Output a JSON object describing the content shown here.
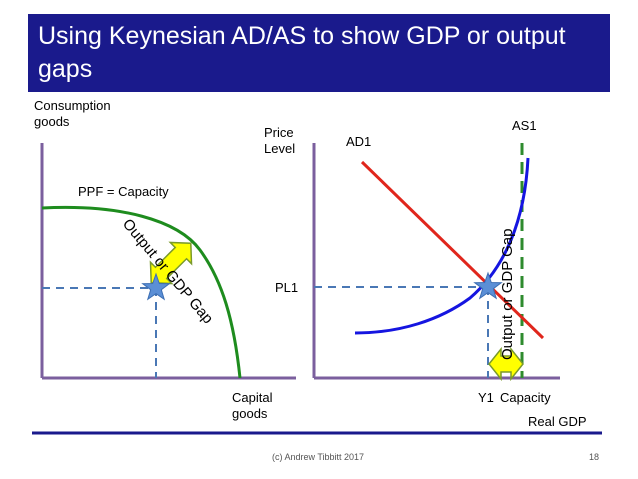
{
  "slide": {
    "title": "Using Keynesian AD/AS to show GDP or output gaps",
    "footer": "(c) Andrew Tibbitt 2017",
    "page_number": "18"
  },
  "ppf_diagram": {
    "y_axis_label_line1": "Consumption",
    "y_axis_label_line2": "goods",
    "x_axis_label_line1": "Capital",
    "x_axis_label_line2": "goods",
    "curve_label": "PPF = Capacity",
    "gap_label": "Output or GDP Gap"
  },
  "adas_diagram": {
    "y_axis_label_line1": "Price",
    "y_axis_label_line2": "Level",
    "x_axis_label": "Real GDP",
    "ad_label": "AD1",
    "as_label": "AS1",
    "price_label": "PL1",
    "output_label": "Y1",
    "capacity_label": "Capacity",
    "gap_label": "Output or GDP Gap"
  },
  "colors": {
    "title_bg": "#1a1a8c",
    "axis": "#7b5f9e",
    "ppf_curve": "#1e8c1e",
    "ad_curve": "#e0261c",
    "as_curve": "#1515e0",
    "capacity_line": "#2e8b2e",
    "dashed_guides": "#4a78b5",
    "star": "#5b8fd6",
    "gap_arrow_fill": "#ffff00",
    "gap_arrow_stroke": "#7a9a2a",
    "bottom_rule": "#1a1a8c"
  }
}
